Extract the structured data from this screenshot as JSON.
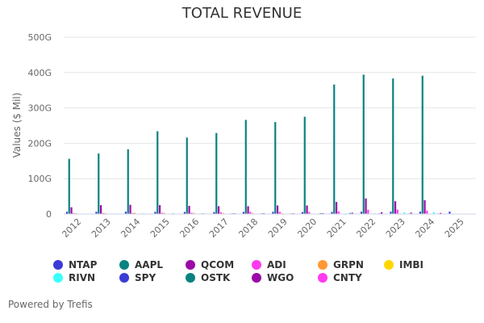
{
  "chart_data": {
    "type": "bar",
    "title": "TOTAL REVENUE",
    "xlabel": "",
    "ylabel": "Values ($ Mil)",
    "ylim": [
      0,
      500
    ],
    "y_unit_suffix": "G",
    "y_ticks": [
      "0",
      "100G",
      "200G",
      "300G",
      "400G",
      "500G"
    ],
    "y_tick_values": [
      0,
      100,
      200,
      300,
      400,
      500
    ],
    "grid": true,
    "legend_position": "bottom",
    "categories": [
      "2012",
      "2013",
      "2014",
      "2015",
      "2016",
      "2017",
      "2018",
      "2019",
      "2020",
      "2021",
      "2022",
      "2023",
      "2024",
      "2025"
    ],
    "series": [
      {
        "name": "NTAP",
        "color": "#3b3bd6",
        "values": [
          6.2,
          6.3,
          6.4,
          6.1,
          5.5,
          5.5,
          5.9,
          6.1,
          5.4,
          5.7,
          6.3,
          6.4,
          6.3,
          6.5
        ]
      },
      {
        "name": "AAPL",
        "color": "#0a8280",
        "values": [
          156,
          171,
          183,
          234,
          216,
          229,
          266,
          260,
          275,
          366,
          394,
          383,
          391,
          null
        ]
      },
      {
        "name": "QCOM",
        "color": "#9b0aa6",
        "values": [
          19,
          25,
          26,
          25,
          23,
          22,
          22,
          24,
          24,
          34,
          44,
          36,
          39,
          null
        ]
      },
      {
        "name": "ADI",
        "color": "#ff3bf0",
        "values": [
          2.7,
          2.6,
          2.9,
          3.4,
          3.4,
          5.1,
          6.2,
          6.0,
          5.6,
          7.3,
          12.0,
          12.3,
          9.4,
          null
        ]
      },
      {
        "name": "GRPN",
        "color": "#ff9933",
        "values": [
          2.3,
          2.6,
          3.2,
          3.1,
          3.1,
          2.8,
          2.6,
          2.2,
          1.4,
          1.0,
          0.6,
          0.5,
          0.5,
          null
        ]
      },
      {
        "name": "IMBI",
        "color": "#ffd700",
        "values": [
          null,
          null,
          null,
          null,
          null,
          null,
          null,
          null,
          null,
          null,
          null,
          null,
          null,
          null
        ]
      },
      {
        "name": "RIVN",
        "color": "#3bffff",
        "values": [
          null,
          null,
          null,
          null,
          null,
          null,
          null,
          null,
          0,
          0.1,
          1.7,
          4.4,
          5.0,
          null
        ]
      },
      {
        "name": "SPY",
        "color": "#3b3bd6",
        "values": [
          null,
          null,
          null,
          null,
          null,
          null,
          null,
          null,
          null,
          null,
          null,
          null,
          null,
          null
        ]
      },
      {
        "name": "OSTK",
        "color": "#0a8280",
        "values": [
          1.1,
          1.3,
          1.5,
          1.7,
          1.8,
          1.8,
          1.8,
          1.5,
          2.5,
          2.8,
          1.9,
          1.6,
          1.4,
          null
        ]
      },
      {
        "name": "WGO",
        "color": "#9b0aa6",
        "values": [
          0.6,
          0.9,
          1.0,
          1.0,
          1.0,
          2.0,
          2.1,
          2.0,
          2.4,
          3.6,
          5.0,
          3.8,
          3.0,
          null
        ]
      },
      {
        "name": "CNTY",
        "color": "#ff3bf0",
        "values": [
          null,
          null,
          null,
          null,
          null,
          null,
          null,
          null,
          null,
          null,
          null,
          null,
          null,
          null
        ]
      }
    ]
  },
  "legend": [
    {
      "label": "NTAP",
      "color": "#3b3bd6"
    },
    {
      "label": "AAPL",
      "color": "#0a8280"
    },
    {
      "label": "QCOM",
      "color": "#9b0aa6"
    },
    {
      "label": "ADI",
      "color": "#ff3bf0"
    },
    {
      "label": "GRPN",
      "color": "#ff9933"
    },
    {
      "label": "IMBI",
      "color": "#ffd700"
    },
    {
      "label": "RIVN",
      "color": "#3bffff"
    },
    {
      "label": "SPY",
      "color": "#3b3bd6"
    },
    {
      "label": "OSTK",
      "color": "#0a8280"
    },
    {
      "label": "WGO",
      "color": "#9b0aa6"
    },
    {
      "label": "CNTY",
      "color": "#ff3bf0"
    }
  ],
  "footer": {
    "credit": "Powered by Trefis"
  }
}
